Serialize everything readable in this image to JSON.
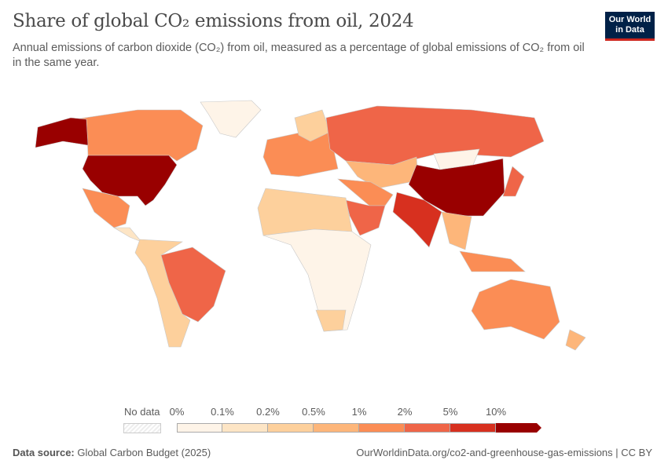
{
  "header": {
    "title": "Share of global CO₂ emissions from oil, 2024",
    "subtitle": "Annual emissions of carbon dioxide (CO₂) from oil, measured as a percentage of global emissions of CO₂ from oil in the same year.",
    "logo_line1": "Our World",
    "logo_line2": "in Data"
  },
  "legend": {
    "no_data_label": "No data",
    "ticks": [
      "0%",
      "0.1%",
      "0.2%",
      "0.5%",
      "1%",
      "2%",
      "5%",
      "10%"
    ],
    "colors": [
      "#fef4e8",
      "#fde5c5",
      "#fdd09c",
      "#fdb67a",
      "#fb8d55",
      "#ef6548",
      "#d7301f",
      "#990000"
    ]
  },
  "chart_data": {
    "type": "map",
    "title": "Share of global CO₂ emissions from oil, 2024",
    "unit": "%",
    "bins": [
      "0–0.1%",
      "0.1–0.2%",
      "0.2–0.5%",
      "0.5–1%",
      "1–2%",
      "2–5%",
      "5–10%",
      ">10%"
    ],
    "regions": [
      {
        "name": "United States",
        "bin": ">10%"
      },
      {
        "name": "China",
        "bin": ">10%"
      },
      {
        "name": "India",
        "bin": "5–10%"
      },
      {
        "name": "Russia",
        "bin": "2–5%"
      },
      {
        "name": "Japan",
        "bin": "2–5%"
      },
      {
        "name": "Saudi Arabia",
        "bin": "2–5%"
      },
      {
        "name": "Brazil",
        "bin": "2–5%"
      },
      {
        "name": "Canada",
        "bin": "1–2%"
      },
      {
        "name": "Mexico",
        "bin": "1–2%"
      },
      {
        "name": "Australia",
        "bin": "1–2%"
      },
      {
        "name": "Indonesia",
        "bin": "1–2%"
      },
      {
        "name": "Europe",
        "bin": "1–2%"
      },
      {
        "name": "Greenland",
        "bin": "0–0.1%"
      }
    ]
  },
  "footer": {
    "source_label": "Data source:",
    "source": "Global Carbon Budget (2025)",
    "url": "OurWorldinData.org/co2-and-greenhouse-gas-emissions | CC BY"
  }
}
